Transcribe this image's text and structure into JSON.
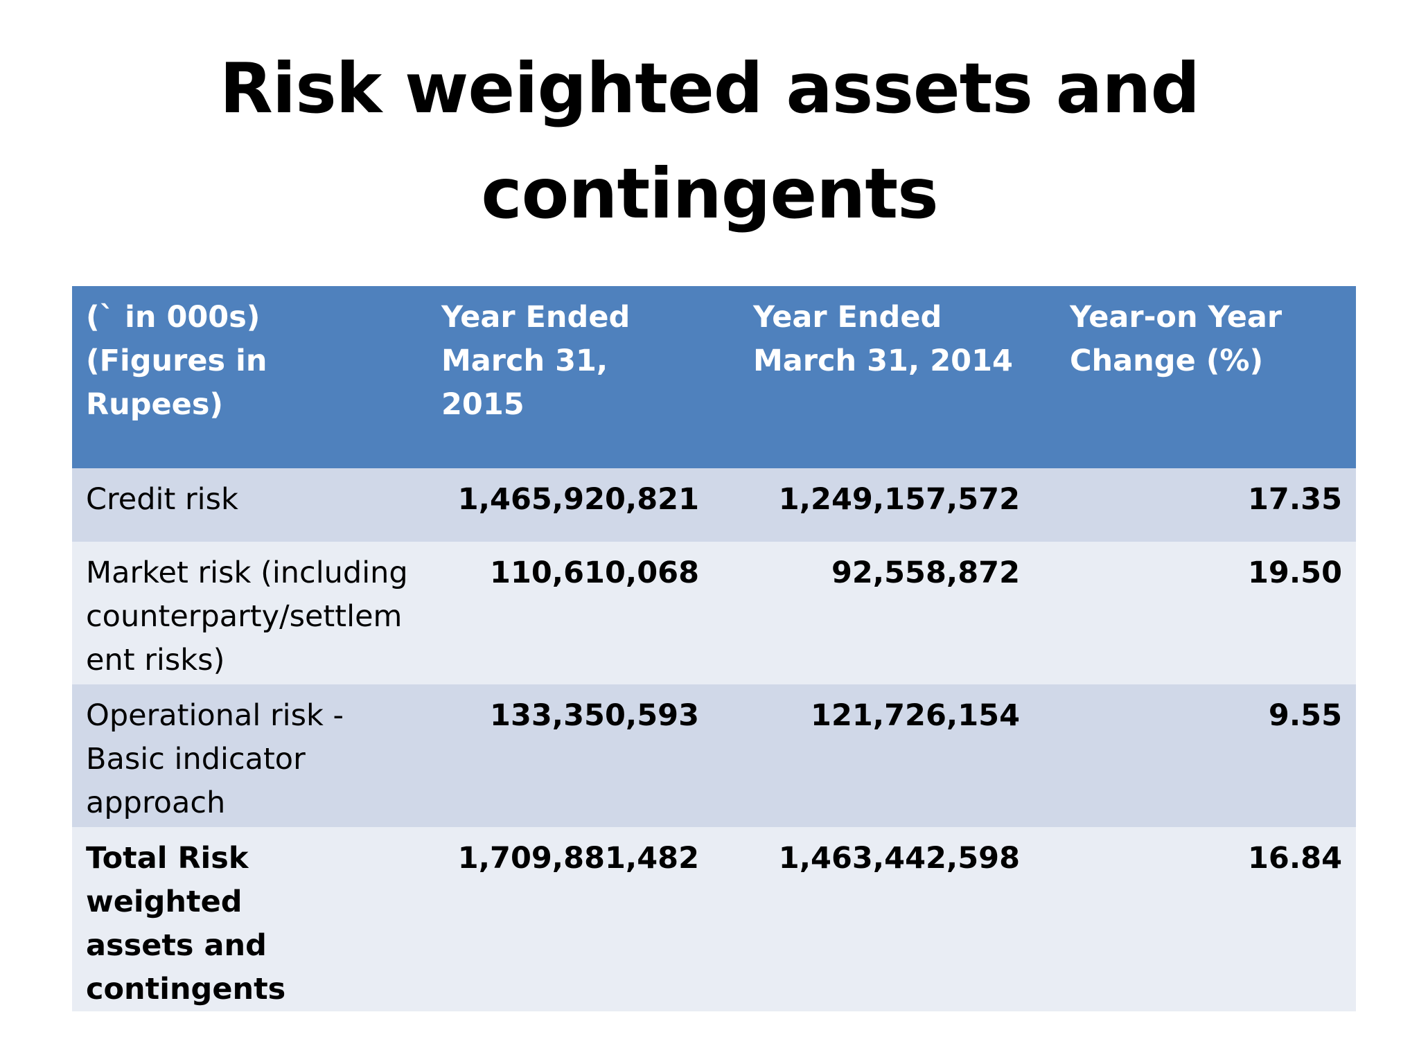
{
  "slide": {
    "title_line1": "Risk weighted assets and",
    "title_line2": "contingents"
  },
  "table": {
    "header": {
      "col1_line1": "(` in 000s)",
      "col1_line2": "(Figures in Rupees)",
      "col2_line1": "Year Ended",
      "col2_line2": "March 31, 2015",
      "col3_line1": "Year Ended",
      "col3_line2": "March 31, 2014",
      "col4_line1": "Year-on Year",
      "col4_line2": "Change (%)"
    },
    "rows": [
      {
        "label": "Credit risk",
        "fy2015": "1,465,920,821",
        "fy2014": "1,249,157,572",
        "change": "17.35"
      },
      {
        "label_line1": "Market risk (including",
        "label_line2": "counterparty/settlem",
        "label_line3": "ent risks)",
        "fy2015": "110,610,068",
        "fy2014": "92,558,872",
        "change": "19.50"
      },
      {
        "label_line1": "Operational risk -",
        "label_line2": "Basic indicator",
        "label_line3": "approach",
        "fy2015": "133,350,593",
        "fy2014": "121,726,154",
        "change": "9.55"
      },
      {
        "label_line1": "Total Risk weighted",
        "label_line2": "assets and",
        "label_line3": "contingents",
        "fy2015": "1,709,881,482",
        "fy2014": "1,463,442,598",
        "change": "16.84"
      }
    ]
  },
  "colors": {
    "header_bg": "#4f81bd",
    "header_text": "#ffffff",
    "row_dark": "#d0d8e8",
    "row_light": "#e9edf4"
  }
}
